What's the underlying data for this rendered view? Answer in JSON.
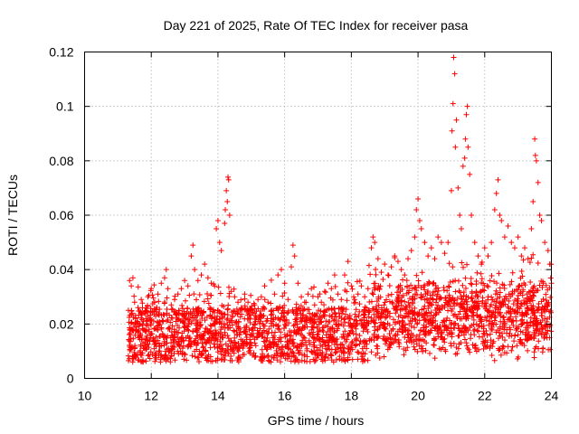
{
  "chart_data": {
    "type": "scatter",
    "title": "Day 221 of 2025, Rate Of TEC Index for receiver pasa",
    "xlabel": "GPS time / hours",
    "ylabel": "ROTI / TECUs",
    "xlim": [
      10,
      24
    ],
    "ylim": [
      0,
      0.12
    ],
    "x_ticks": [
      10,
      12,
      14,
      16,
      18,
      20,
      22,
      24
    ],
    "x_tick_labels": [
      "10",
      "12",
      "14",
      "16",
      "18",
      "20",
      "22",
      "24"
    ],
    "y_ticks": [
      0,
      0.02,
      0.04,
      0.06,
      0.08,
      0.1,
      0.12
    ],
    "y_tick_labels": [
      "0",
      "0.02",
      "0.04",
      "0.06",
      "0.08",
      "0.1",
      "0.12"
    ],
    "grid": true,
    "marker": "+",
    "color": "#ff0000",
    "series": [
      {
        "name": "ROTI",
        "points": [
          [
            11.35,
            0.036
          ],
          [
            11.4,
            0.034
          ],
          [
            11.45,
            0.037
          ],
          [
            11.5,
            0.028
          ],
          [
            11.6,
            0.026
          ],
          [
            11.7,
            0.029
          ],
          [
            11.8,
            0.024
          ],
          [
            11.9,
            0.03
          ],
          [
            12.0,
            0.033
          ],
          [
            12.1,
            0.028
          ],
          [
            12.2,
            0.031
          ],
          [
            12.3,
            0.035
          ],
          [
            12.4,
            0.037
          ],
          [
            12.45,
            0.04
          ],
          [
            12.5,
            0.033
          ],
          [
            12.6,
            0.027
          ],
          [
            12.7,
            0.029
          ],
          [
            12.8,
            0.031
          ],
          [
            12.9,
            0.033
          ],
          [
            13.0,
            0.036
          ],
          [
            13.1,
            0.034
          ],
          [
            13.2,
            0.045
          ],
          [
            13.25,
            0.049
          ],
          [
            13.3,
            0.04
          ],
          [
            13.4,
            0.036
          ],
          [
            13.5,
            0.038
          ],
          [
            13.6,
            0.042
          ],
          [
            13.7,
            0.037
          ],
          [
            13.8,
            0.035
          ],
          [
            13.9,
            0.034
          ],
          [
            13.95,
            0.055
          ],
          [
            14.0,
            0.058
          ],
          [
            14.05,
            0.05
          ],
          [
            14.1,
            0.047
          ],
          [
            14.2,
            0.057
          ],
          [
            14.22,
            0.062
          ],
          [
            14.25,
            0.069
          ],
          [
            14.28,
            0.065
          ],
          [
            14.3,
            0.074
          ],
          [
            14.32,
            0.073
          ],
          [
            14.35,
            0.06
          ],
          [
            14.4,
            0.032
          ],
          [
            14.5,
            0.03
          ],
          [
            14.6,
            0.028
          ],
          [
            14.7,
            0.026
          ],
          [
            14.8,
            0.031
          ],
          [
            14.9,
            0.028
          ],
          [
            15.0,
            0.025
          ],
          [
            15.1,
            0.027
          ],
          [
            15.2,
            0.029
          ],
          [
            15.3,
            0.03
          ],
          [
            15.4,
            0.034
          ],
          [
            15.5,
            0.028
          ],
          [
            15.6,
            0.025
          ],
          [
            15.7,
            0.031
          ],
          [
            15.8,
            0.038
          ],
          [
            15.9,
            0.04
          ],
          [
            16.0,
            0.035
          ],
          [
            16.1,
            0.029
          ],
          [
            16.2,
            0.041
          ],
          [
            16.25,
            0.049
          ],
          [
            16.3,
            0.045
          ],
          [
            16.4,
            0.035
          ],
          [
            16.5,
            0.03
          ],
          [
            16.6,
            0.028
          ],
          [
            16.7,
            0.031
          ],
          [
            16.8,
            0.033
          ],
          [
            16.9,
            0.027
          ],
          [
            17.0,
            0.03
          ],
          [
            17.1,
            0.028
          ],
          [
            17.2,
            0.032
          ],
          [
            17.3,
            0.035
          ],
          [
            17.4,
            0.033
          ],
          [
            17.5,
            0.038
          ],
          [
            17.6,
            0.031
          ],
          [
            17.7,
            0.029
          ],
          [
            17.8,
            0.038
          ],
          [
            17.9,
            0.043
          ],
          [
            18.0,
            0.034
          ],
          [
            18.1,
            0.029
          ],
          [
            18.2,
            0.031
          ],
          [
            18.3,
            0.034
          ],
          [
            18.4,
            0.03
          ],
          [
            18.5,
            0.033
          ],
          [
            18.6,
            0.048
          ],
          [
            18.65,
            0.052
          ],
          [
            18.7,
            0.05
          ],
          [
            18.8,
            0.044
          ],
          [
            18.9,
            0.039
          ],
          [
            19.0,
            0.042
          ],
          [
            19.1,
            0.038
          ],
          [
            19.2,
            0.041
          ],
          [
            19.3,
            0.045
          ],
          [
            19.4,
            0.043
          ],
          [
            19.5,
            0.04
          ],
          [
            19.6,
            0.038
          ],
          [
            19.7,
            0.044
          ],
          [
            19.8,
            0.047
          ],
          [
            19.9,
            0.052
          ],
          [
            19.95,
            0.062
          ],
          [
            20.0,
            0.066
          ],
          [
            20.05,
            0.058
          ],
          [
            20.1,
            0.055
          ],
          [
            20.2,
            0.05
          ],
          [
            20.3,
            0.045
          ],
          [
            20.4,
            0.048
          ],
          [
            20.5,
            0.044
          ],
          [
            20.6,
            0.052
          ],
          [
            20.7,
            0.05
          ],
          [
            20.8,
            0.046
          ],
          [
            20.9,
            0.05
          ],
          [
            21.0,
            0.069
          ],
          [
            21.02,
            0.091
          ],
          [
            21.05,
            0.101
          ],
          [
            21.07,
            0.118
          ],
          [
            21.1,
            0.112
          ],
          [
            21.12,
            0.085
          ],
          [
            21.15,
            0.095
          ],
          [
            21.2,
            0.07
          ],
          [
            21.25,
            0.06
          ],
          [
            21.3,
            0.055
          ],
          [
            21.35,
            0.078
          ],
          [
            21.4,
            0.081
          ],
          [
            21.42,
            0.088
          ],
          [
            21.45,
            0.097
          ],
          [
            21.48,
            0.1
          ],
          [
            21.5,
            0.085
          ],
          [
            21.55,
            0.075
          ],
          [
            21.6,
            0.06
          ],
          [
            21.7,
            0.05
          ],
          [
            21.8,
            0.045
          ],
          [
            21.9,
            0.042
          ],
          [
            22.0,
            0.048
          ],
          [
            22.1,
            0.045
          ],
          [
            22.2,
            0.05
          ],
          [
            22.3,
            0.062
          ],
          [
            22.35,
            0.068
          ],
          [
            22.4,
            0.073
          ],
          [
            22.45,
            0.06
          ],
          [
            22.5,
            0.058
          ],
          [
            22.6,
            0.052
          ],
          [
            22.7,
            0.056
          ],
          [
            22.8,
            0.05
          ],
          [
            22.9,
            0.048
          ],
          [
            23.0,
            0.052
          ],
          [
            23.1,
            0.045
          ],
          [
            23.2,
            0.048
          ],
          [
            23.3,
            0.044
          ],
          [
            23.4,
            0.055
          ],
          [
            23.45,
            0.065
          ],
          [
            23.5,
            0.088
          ],
          [
            23.52,
            0.082
          ],
          [
            23.55,
            0.08
          ],
          [
            23.6,
            0.072
          ],
          [
            23.65,
            0.06
          ],
          [
            23.7,
            0.058
          ],
          [
            23.8,
            0.05
          ],
          [
            23.9,
            0.047
          ],
          [
            23.95,
            0.042
          ],
          [
            24.0,
            0.035
          ]
        ]
      }
    ]
  }
}
